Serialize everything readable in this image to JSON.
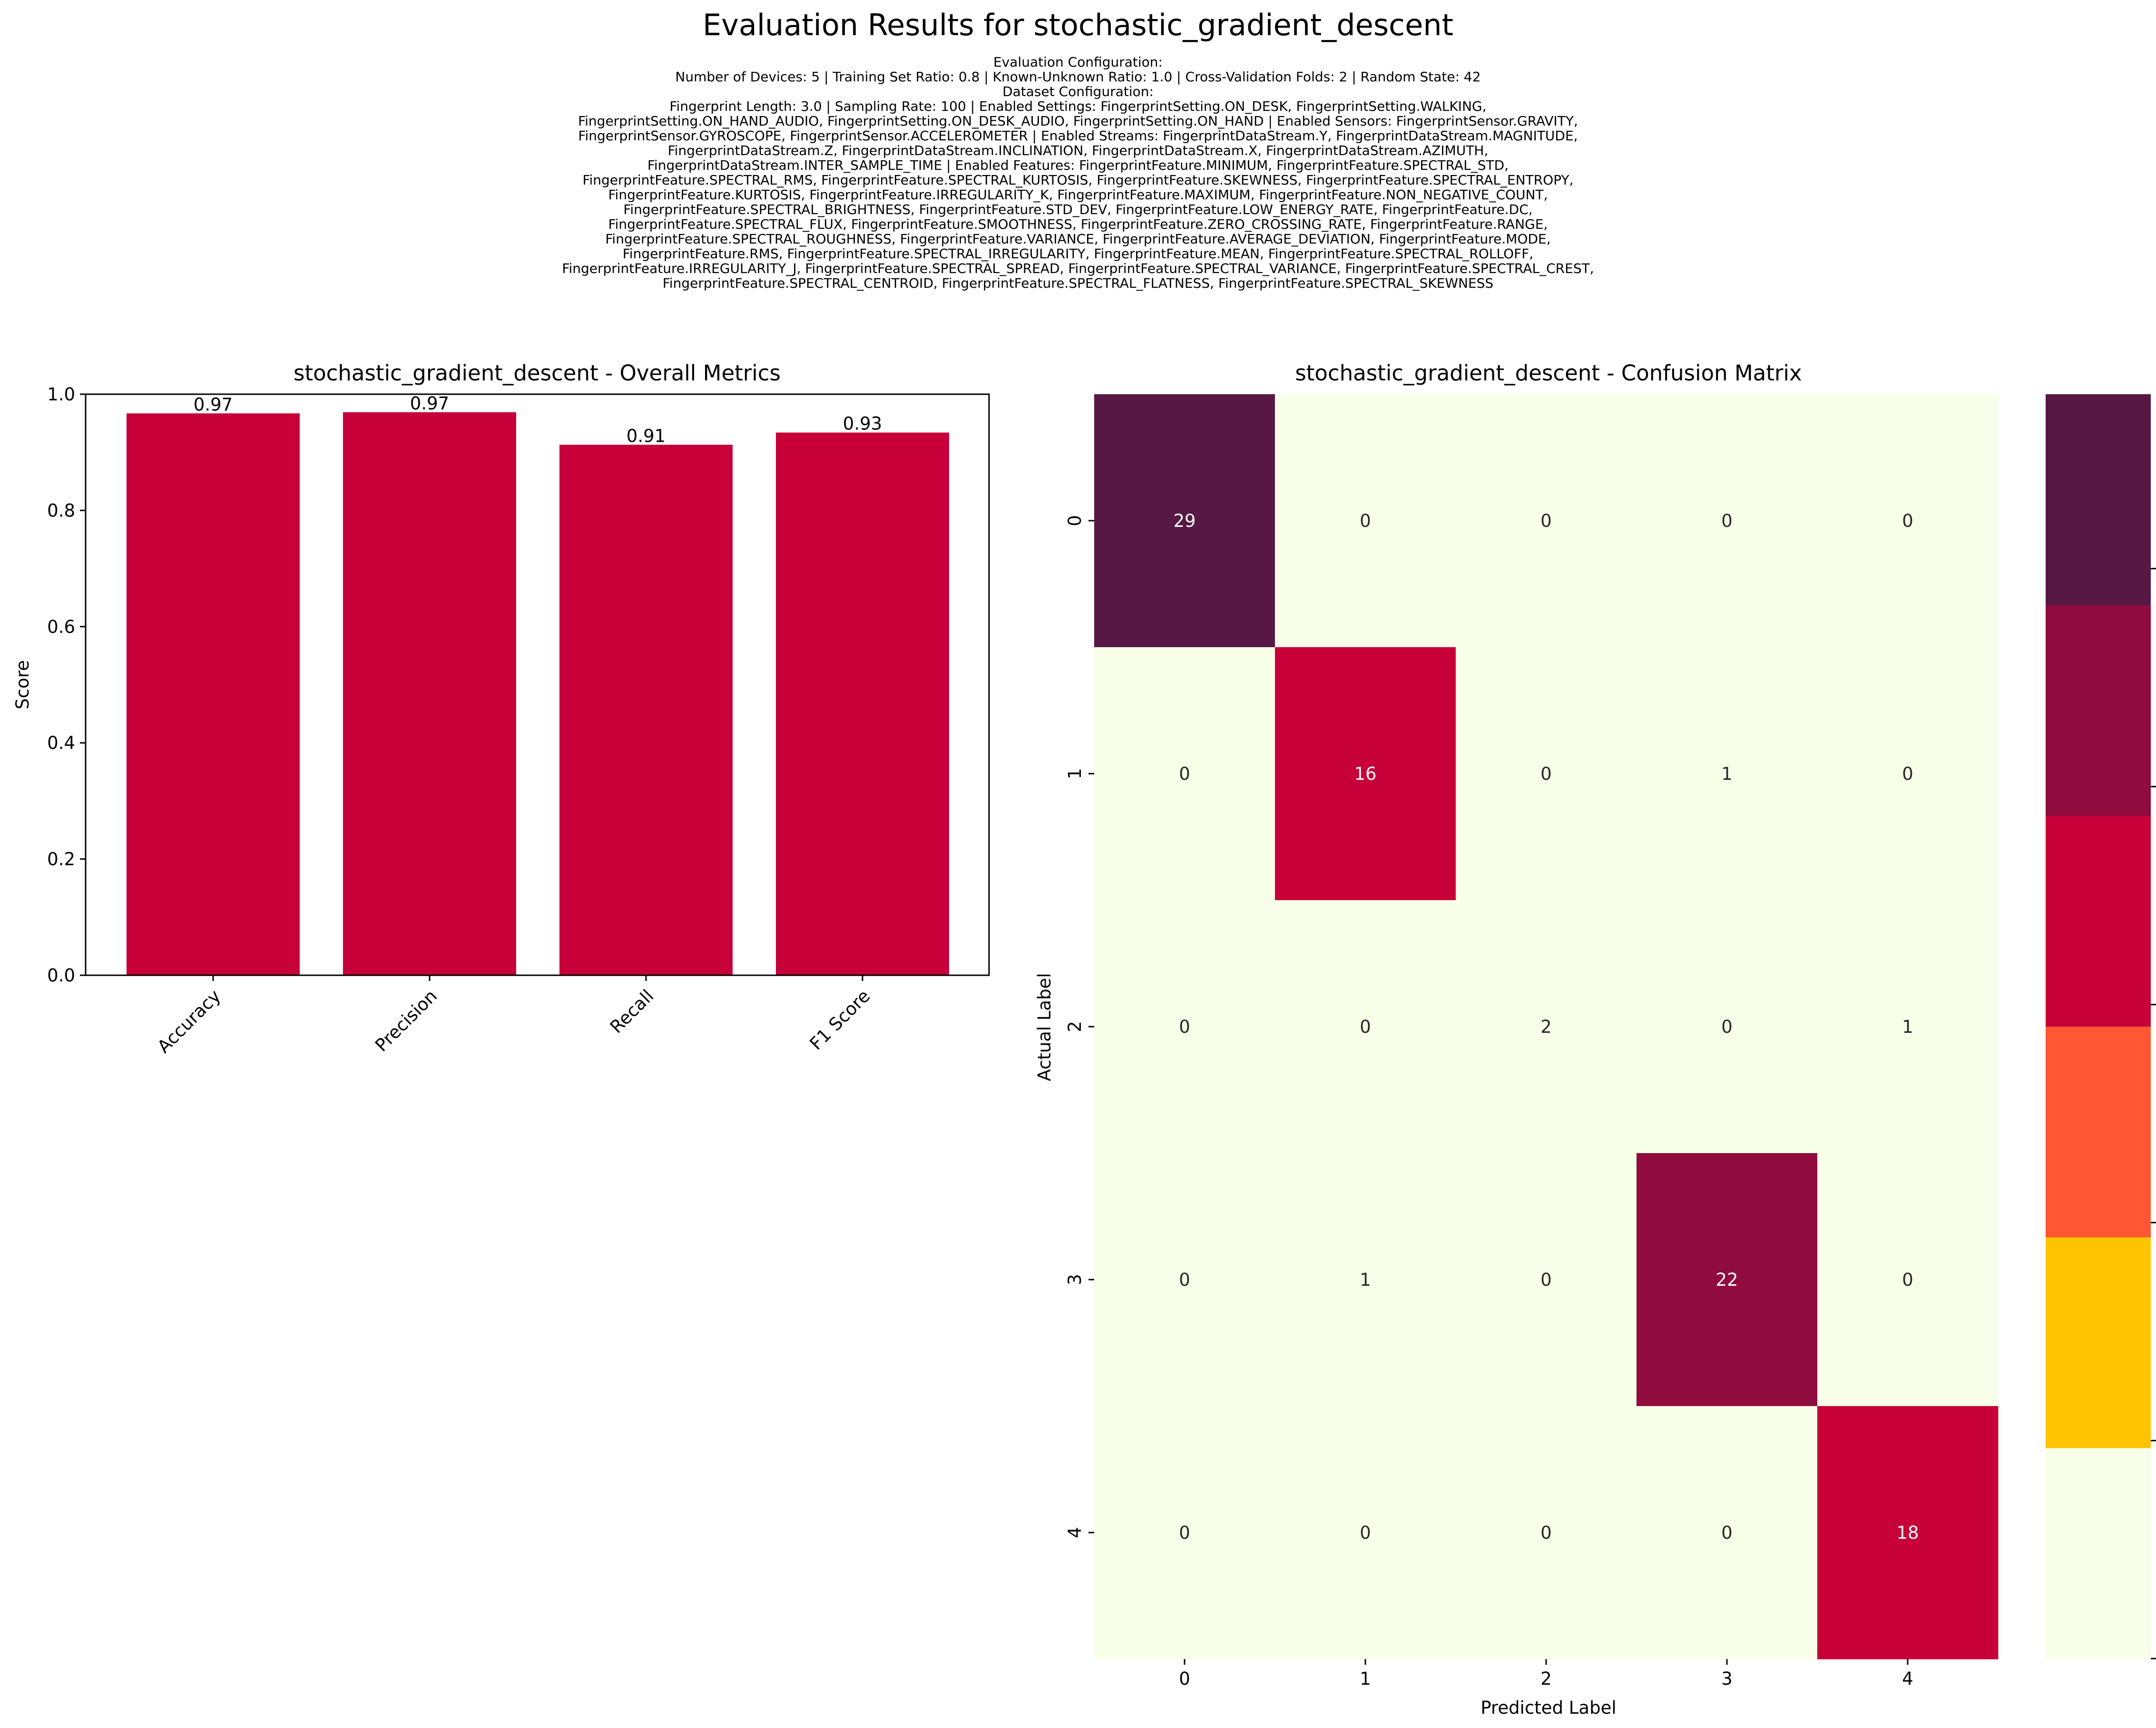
{
  "figure": {
    "title": "Evaluation Results for stochastic_gradient_descent",
    "config_lines": [
      "Evaluation Configuration:",
      "Number of Devices: 5 | Training Set Ratio: 0.8 | Known-Unknown Ratio: 1.0 | Cross-Validation Folds: 2 | Random State: 42",
      "Dataset Configuration:",
      "Fingerprint Length: 3.0 | Sampling Rate: 100 | Enabled Settings: FingerprintSetting.ON_DESK, FingerprintSetting.WALKING,",
      "FingerprintSetting.ON_HAND_AUDIO, FingerprintSetting.ON_DESK_AUDIO, FingerprintSetting.ON_HAND | Enabled Sensors: FingerprintSensor.GRAVITY,",
      "FingerprintSensor.GYROSCOPE, FingerprintSensor.ACCELEROMETER | Enabled Streams: FingerprintDataStream.Y, FingerprintDataStream.MAGNITUDE,",
      "FingerprintDataStream.Z, FingerprintDataStream.INCLINATION, FingerprintDataStream.X, FingerprintDataStream.AZIMUTH,",
      "FingerprintDataStream.INTER_SAMPLE_TIME | Enabled Features: FingerprintFeature.MINIMUM, FingerprintFeature.SPECTRAL_STD,",
      "FingerprintFeature.SPECTRAL_RMS, FingerprintFeature.SPECTRAL_KURTOSIS, FingerprintFeature.SKEWNESS, FingerprintFeature.SPECTRAL_ENTROPY,",
      "FingerprintFeature.KURTOSIS, FingerprintFeature.IRREGULARITY_K, FingerprintFeature.MAXIMUM, FingerprintFeature.NON_NEGATIVE_COUNT,",
      "FingerprintFeature.SPECTRAL_BRIGHTNESS, FingerprintFeature.STD_DEV, FingerprintFeature.LOW_ENERGY_RATE, FingerprintFeature.DC,",
      "FingerprintFeature.SPECTRAL_FLUX, FingerprintFeature.SMOOTHNESS, FingerprintFeature.ZERO_CROSSING_RATE, FingerprintFeature.RANGE,",
      "FingerprintFeature.SPECTRAL_ROUGHNESS, FingerprintFeature.VARIANCE, FingerprintFeature.AVERAGE_DEVIATION, FingerprintFeature.MODE,",
      "FingerprintFeature.RMS, FingerprintFeature.SPECTRAL_IRREGULARITY, FingerprintFeature.MEAN, FingerprintFeature.SPECTRAL_ROLLOFF,",
      "FingerprintFeature.IRREGULARITY_J, FingerprintFeature.SPECTRAL_SPREAD, FingerprintFeature.SPECTRAL_VARIANCE, FingerprintFeature.SPECTRAL_CREST,",
      "FingerprintFeature.SPECTRAL_CENTROID, FingerprintFeature.SPECTRAL_FLATNESS, FingerprintFeature.SPECTRAL_SKEWNESS"
    ]
  },
  "chart_data": [
    {
      "type": "bar",
      "title": "stochastic_gradient_descent - Overall Metrics",
      "categories": [
        "Accuracy",
        "Precision",
        "Recall",
        "F1 Score"
      ],
      "values": [
        0.967,
        0.969,
        0.913,
        0.934
      ],
      "value_labels": [
        "0.97",
        "0.97",
        "0.91",
        "0.93"
      ],
      "xlabel": "",
      "ylabel": "Score",
      "ylim": [
        0,
        1.0
      ],
      "yticks": [
        "0.0",
        "0.2",
        "0.4",
        "0.6",
        "0.8",
        "1.0"
      ],
      "bar_color": "#c70039",
      "grid": false
    },
    {
      "type": "heatmap",
      "title": "stochastic_gradient_descent - Confusion Matrix",
      "xlabel": "Predicted Label",
      "ylabel": "Actual Label",
      "x_categories": [
        "0",
        "1",
        "2",
        "3",
        "4"
      ],
      "y_categories": [
        "0",
        "1",
        "2",
        "3",
        "4"
      ],
      "matrix": [
        [
          29,
          0,
          0,
          0,
          0
        ],
        [
          0,
          16,
          0,
          1,
          0
        ],
        [
          0,
          0,
          2,
          0,
          1
        ],
        [
          0,
          1,
          0,
          22,
          0
        ],
        [
          0,
          0,
          0,
          0,
          18
        ]
      ],
      "colorbar": {
        "range": [
          0,
          29
        ],
        "ticks": [
          "0",
          "5",
          "10",
          "15",
          "20",
          "25"
        ],
        "bins": [
          {
            "from": 0,
            "to": 4.833,
            "color": "#f7ffe8"
          },
          {
            "from": 4.833,
            "to": 9.667,
            "color": "#ffc300"
          },
          {
            "from": 9.667,
            "to": 14.5,
            "color": "#ff5733"
          },
          {
            "from": 14.5,
            "to": 19.333,
            "color": "#c70039"
          },
          {
            "from": 19.333,
            "to": 24.167,
            "color": "#900c3f"
          },
          {
            "from": 24.167,
            "to": 29,
            "color": "#581845"
          }
        ]
      }
    }
  ]
}
